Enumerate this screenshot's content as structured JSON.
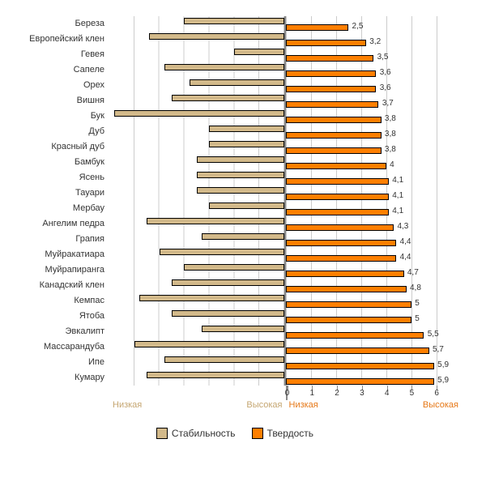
{
  "chart": {
    "type": "grouped-horizontal-bar",
    "left_series": "stability",
    "right_series": "hardness",
    "left_max": 7,
    "right_max": 7,
    "right_ticks": [
      0,
      1,
      2,
      3,
      4,
      5,
      6
    ],
    "colors": {
      "stability": "#d2b98a",
      "hardness": "#ff7f00",
      "grid": "#cccccc",
      "axis": "#888888",
      "text": "#333333",
      "scale_left": "#c5a671",
      "scale_right": "#e67817"
    },
    "scale_labels": {
      "left_low": "Низкая",
      "left_high": "Высокая",
      "right_low": "Низкая",
      "right_high": "Высокая"
    },
    "legend": {
      "stability": "Стабильность",
      "hardness": "Твердость"
    },
    "items": [
      {
        "label": "Береза",
        "stability": 4.0,
        "hardness": 2.5,
        "hard_label": "2,5"
      },
      {
        "label": "Европейский клен",
        "stability": 5.4,
        "hardness": 3.2,
        "hard_label": "3,2"
      },
      {
        "label": "Гевея",
        "stability": 2.0,
        "hardness": 3.5,
        "hard_label": "3,5"
      },
      {
        "label": "Сапеле",
        "stability": 4.8,
        "hardness": 3.6,
        "hard_label": "3,6"
      },
      {
        "label": "Орех",
        "stability": 3.8,
        "hardness": 3.6,
        "hard_label": "3,6"
      },
      {
        "label": "Вишня",
        "stability": 4.5,
        "hardness": 3.7,
        "hard_label": "3,7"
      },
      {
        "label": "Бук",
        "stability": 6.8,
        "hardness": 3.8,
        "hard_label": "3,8"
      },
      {
        "label": "Дуб",
        "stability": 3.0,
        "hardness": 3.8,
        "hard_label": "3,8"
      },
      {
        "label": "Красный дуб",
        "stability": 3.0,
        "hardness": 3.8,
        "hard_label": "3,8"
      },
      {
        "label": "Бамбук",
        "stability": 3.5,
        "hardness": 4.0,
        "hard_label": "4"
      },
      {
        "label": "Ясень",
        "stability": 3.5,
        "hardness": 4.1,
        "hard_label": "4,1"
      },
      {
        "label": "Тауари",
        "stability": 3.5,
        "hardness": 4.1,
        "hard_label": "4,1"
      },
      {
        "label": "Мербау",
        "stability": 3.0,
        "hardness": 4.1,
        "hard_label": "4,1"
      },
      {
        "label": "Ангелим педра",
        "stability": 5.5,
        "hardness": 4.3,
        "hard_label": "4,3"
      },
      {
        "label": "Грапия",
        "stability": 3.3,
        "hardness": 4.4,
        "hard_label": "4,4"
      },
      {
        "label": "Муйракатиара",
        "stability": 5.0,
        "hardness": 4.4,
        "hard_label": "4,4"
      },
      {
        "label": "Муйрапиранга",
        "stability": 4.0,
        "hardness": 4.7,
        "hard_label": "4,7"
      },
      {
        "label": "Канадский клен",
        "stability": 4.5,
        "hardness": 4.8,
        "hard_label": "4,8"
      },
      {
        "label": "Кемпас",
        "stability": 5.8,
        "hardness": 5.0,
        "hard_label": "5"
      },
      {
        "label": "Ятоба",
        "stability": 4.5,
        "hardness": 5.0,
        "hard_label": "5"
      },
      {
        "label": "Эвкалипт",
        "stability": 3.3,
        "hardness": 5.5,
        "hard_label": "5,5"
      },
      {
        "label": "Массарандуба",
        "stability": 6.0,
        "hardness": 5.7,
        "hard_label": "5,7"
      },
      {
        "label": "Ипе",
        "stability": 4.8,
        "hardness": 5.9,
        "hard_label": "5,9"
      },
      {
        "label": "Кумару",
        "stability": 5.5,
        "hardness": 5.9,
        "hard_label": "5,9"
      }
    ]
  }
}
